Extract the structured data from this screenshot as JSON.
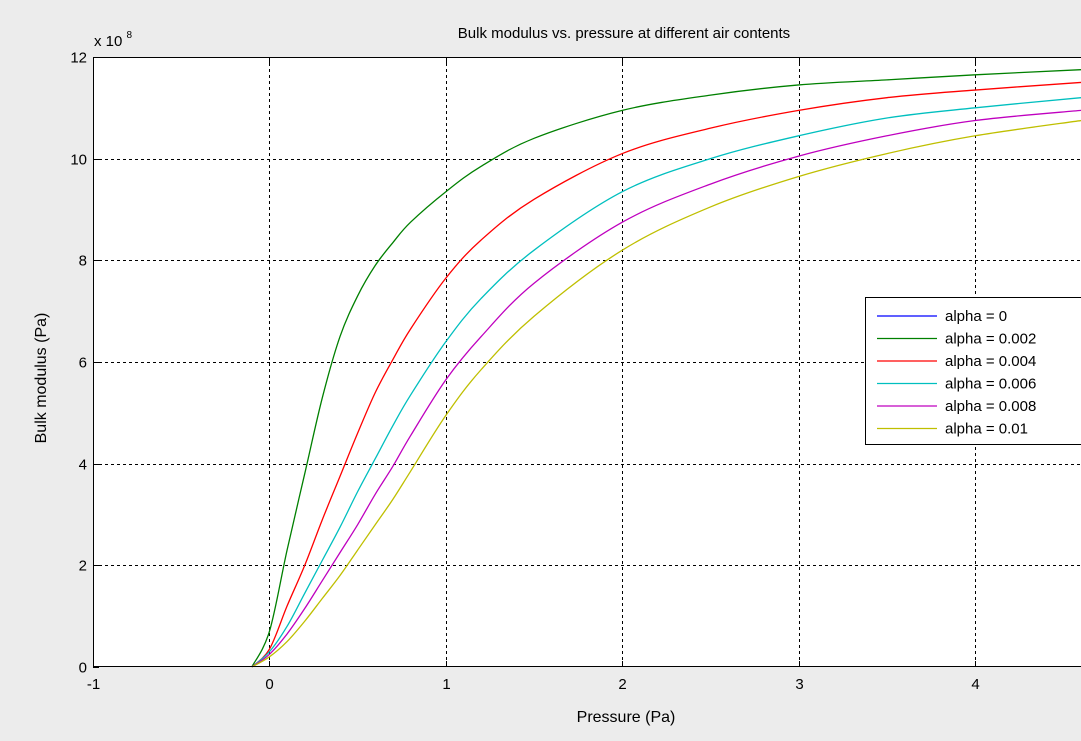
{
  "chart_data": {
    "type": "line",
    "title": "Bulk modulus vs. pressure at different air contents",
    "xlabel": "Pressure (Pa)",
    "ylabel": "Bulk modulus (Pa)",
    "y_exponent_prefix": "x 10",
    "y_exponent_power": "8",
    "xlim": [
      -1,
      4.6
    ],
    "ylim": [
      0,
      12
    ],
    "x_ticks": [
      -1,
      0,
      1,
      2,
      3,
      4
    ],
    "y_ticks": [
      0,
      2,
      4,
      6,
      8,
      10,
      12
    ],
    "x_tick_labels": [
      "-1",
      "0",
      "1",
      "2",
      "3",
      "4"
    ],
    "y_tick_labels": [
      "0",
      "2",
      "4",
      "6",
      "8",
      "10",
      "12"
    ],
    "grid": true,
    "legend_position": "right",
    "series": [
      {
        "name": "alpha = 0",
        "color": "#0000ff",
        "x": [],
        "y": []
      },
      {
        "name": "alpha = 0.002",
        "color": "#008000",
        "x": [
          -0.1,
          0.0,
          0.1,
          0.2,
          0.3,
          0.4,
          0.5,
          0.6,
          0.7,
          0.8,
          1.0,
          1.2,
          1.5,
          2.0,
          2.5,
          3.0,
          3.5,
          4.0,
          4.6
        ],
        "y": [
          0,
          0.7,
          2.3,
          3.8,
          5.3,
          6.5,
          7.3,
          7.9,
          8.35,
          8.75,
          9.35,
          9.85,
          10.4,
          10.95,
          11.25,
          11.45,
          11.55,
          11.65,
          11.75
        ]
      },
      {
        "name": "alpha = 0.004",
        "color": "#ff0000",
        "x": [
          -0.1,
          0.0,
          0.1,
          0.2,
          0.3,
          0.4,
          0.5,
          0.6,
          0.7,
          0.8,
          1.0,
          1.2,
          1.5,
          2.0,
          2.5,
          3.0,
          3.5,
          4.0,
          4.6
        ],
        "y": [
          0,
          0.35,
          1.2,
          2.0,
          2.9,
          3.75,
          4.6,
          5.4,
          6.05,
          6.65,
          7.65,
          8.4,
          9.2,
          10.1,
          10.6,
          10.95,
          11.2,
          11.35,
          11.5
        ]
      },
      {
        "name": "alpha = 0.006",
        "color": "#00bfbf",
        "x": [
          -0.1,
          0.0,
          0.1,
          0.2,
          0.3,
          0.4,
          0.5,
          0.6,
          0.7,
          0.8,
          1.0,
          1.2,
          1.5,
          2.0,
          2.5,
          3.0,
          3.5,
          4.0,
          4.6
        ],
        "y": [
          0,
          0.3,
          0.8,
          1.45,
          2.1,
          2.75,
          3.45,
          4.1,
          4.75,
          5.35,
          6.4,
          7.25,
          8.2,
          9.35,
          10.0,
          10.45,
          10.8,
          11.0,
          11.2
        ]
      },
      {
        "name": "alpha = 0.008",
        "color": "#bf00bf",
        "x": [
          -0.1,
          0.0,
          0.1,
          0.2,
          0.3,
          0.4,
          0.5,
          0.6,
          0.7,
          0.8,
          1.0,
          1.2,
          1.5,
          2.0,
          2.5,
          3.0,
          3.5,
          4.0,
          4.6
        ],
        "y": [
          0,
          0.25,
          0.65,
          1.15,
          1.7,
          2.25,
          2.8,
          3.4,
          3.95,
          4.55,
          5.65,
          6.5,
          7.55,
          8.75,
          9.5,
          10.05,
          10.45,
          10.75,
          10.95
        ]
      },
      {
        "name": "alpha = 0.01",
        "color": "#bfbf00",
        "x": [
          -0.1,
          0.0,
          0.1,
          0.2,
          0.3,
          0.4,
          0.5,
          0.6,
          0.7,
          0.8,
          1.0,
          1.2,
          1.5,
          2.0,
          2.5,
          3.0,
          3.5,
          4.0,
          4.6
        ],
        "y": [
          0,
          0.2,
          0.5,
          0.9,
          1.35,
          1.8,
          2.3,
          2.8,
          3.3,
          3.85,
          4.95,
          5.85,
          6.9,
          8.2,
          9.05,
          9.65,
          10.1,
          10.45,
          10.75
        ]
      }
    ]
  }
}
